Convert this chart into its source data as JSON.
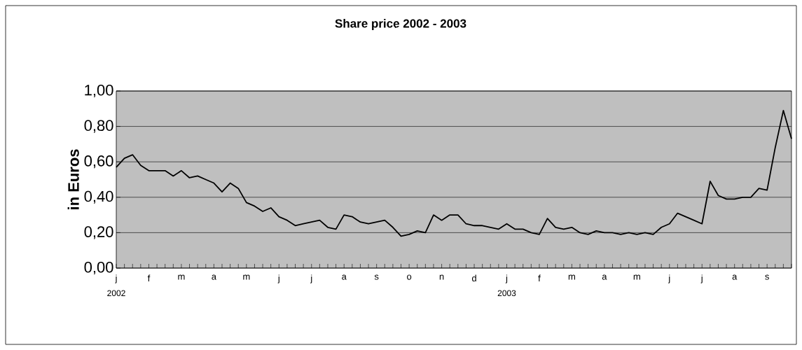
{
  "chart_data": {
    "type": "line",
    "title": "Share price 2002 - 2003",
    "ylabel": "in Euros",
    "categories": [
      "j",
      null,
      null,
      null,
      "f",
      null,
      null,
      null,
      "m",
      null,
      null,
      null,
      "a",
      null,
      null,
      null,
      "m",
      null,
      null,
      null,
      "j",
      null,
      null,
      null,
      "j",
      null,
      null,
      null,
      "a",
      null,
      null,
      null,
      "s",
      null,
      null,
      null,
      "o",
      null,
      null,
      null,
      "n",
      null,
      null,
      null,
      "d",
      null,
      null,
      null,
      "j",
      null,
      null,
      null,
      "f",
      null,
      null,
      null,
      "m",
      null,
      null,
      null,
      "a",
      null,
      null,
      null,
      "m",
      null,
      null,
      null,
      "j",
      null,
      null,
      null,
      "j",
      null,
      null,
      null,
      "a",
      null,
      null,
      null,
      "s",
      null,
      null,
      null
    ],
    "values": [
      0.57,
      0.62,
      0.64,
      0.58,
      0.55,
      0.55,
      0.55,
      0.52,
      0.55,
      0.51,
      0.52,
      0.5,
      0.48,
      0.43,
      0.48,
      0.45,
      0.37,
      0.35,
      0.32,
      0.34,
      0.29,
      0.27,
      0.24,
      0.25,
      0.26,
      0.27,
      0.23,
      0.22,
      0.3,
      0.29,
      0.26,
      0.25,
      0.26,
      0.27,
      0.23,
      0.18,
      0.19,
      0.21,
      0.2,
      0.3,
      0.27,
      0.3,
      0.3,
      0.25,
      0.24,
      0.24,
      0.23,
      0.22,
      0.25,
      0.22,
      0.22,
      0.2,
      0.19,
      0.28,
      0.23,
      0.22,
      0.23,
      0.2,
      0.19,
      0.21,
      0.2,
      0.2,
      0.19,
      0.2,
      0.19,
      0.2,
      0.19,
      0.23,
      0.25,
      0.31,
      0.29,
      0.27,
      0.25,
      0.49,
      0.41,
      0.39,
      0.39,
      0.4,
      0.4,
      0.45,
      0.44,
      0.68,
      0.89,
      0.73
    ],
    "color": "#000000",
    "line_style": "solid",
    "marker": "none",
    "grid": "y",
    "ylim": [
      0,
      1
    ],
    "yticks": [
      {
        "value": 0,
        "label": "0,00"
      },
      {
        "value": 0.2,
        "label": "0,20"
      },
      {
        "value": 0.4,
        "label": "0,40"
      },
      {
        "value": 0.6,
        "label": "0,60"
      },
      {
        "value": 0.8,
        "label": "0,80"
      },
      {
        "value": 1,
        "label": "1,00"
      }
    ],
    "annotations": [
      "2002",
      "2003"
    ]
  }
}
